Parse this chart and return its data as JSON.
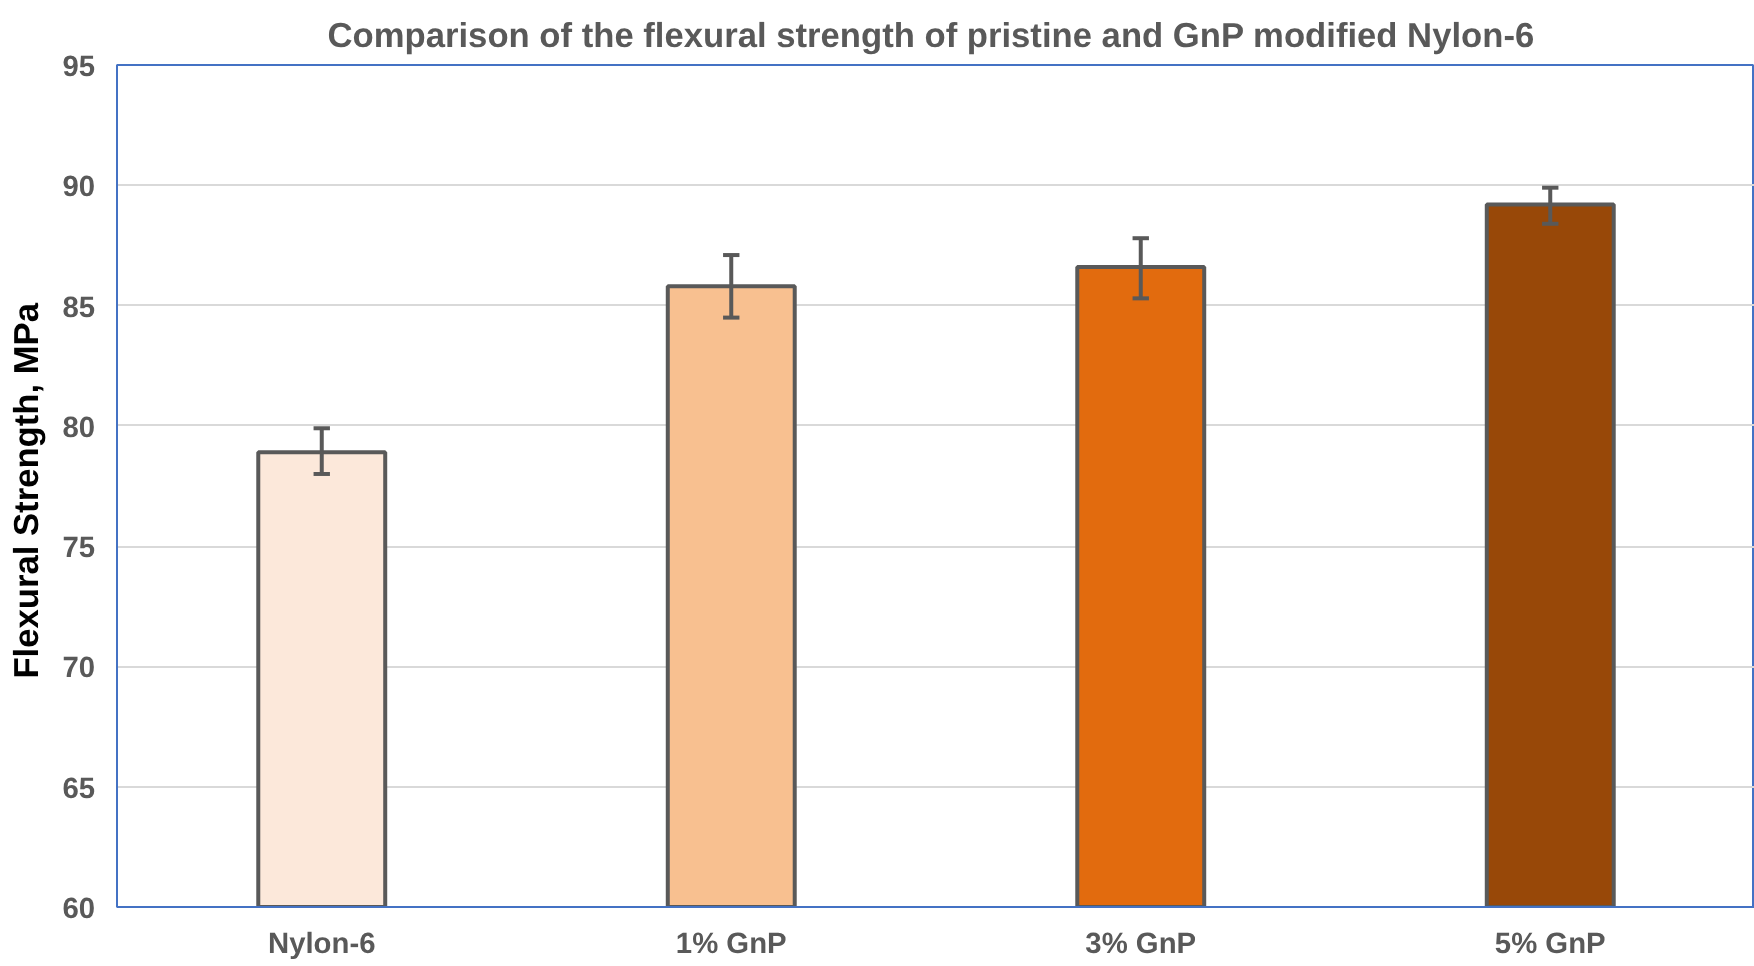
{
  "chart_data": {
    "type": "bar",
    "title": "Comparison of the flexural strength of pristine and GnP modified  Nylon-6",
    "ylabel": "Flexural  Strength, MPa",
    "categories": [
      "Nylon-6",
      "1% GnP",
      "3% GnP",
      "5% GnP"
    ],
    "values": [
      78.9,
      85.8,
      86.6,
      89.2
    ],
    "colors": [
      "#fce8da",
      "#f8c090",
      "#e26b0e",
      "#984808"
    ],
    "errors": [
      [
        78.0,
        79.9
      ],
      [
        84.5,
        87.1
      ],
      [
        85.3,
        87.8
      ],
      [
        88.4,
        89.9
      ]
    ],
    "ylim": [
      60,
      95
    ],
    "yticks": [
      60,
      65,
      70,
      75,
      80,
      85,
      90,
      95
    ],
    "grid": "y"
  }
}
